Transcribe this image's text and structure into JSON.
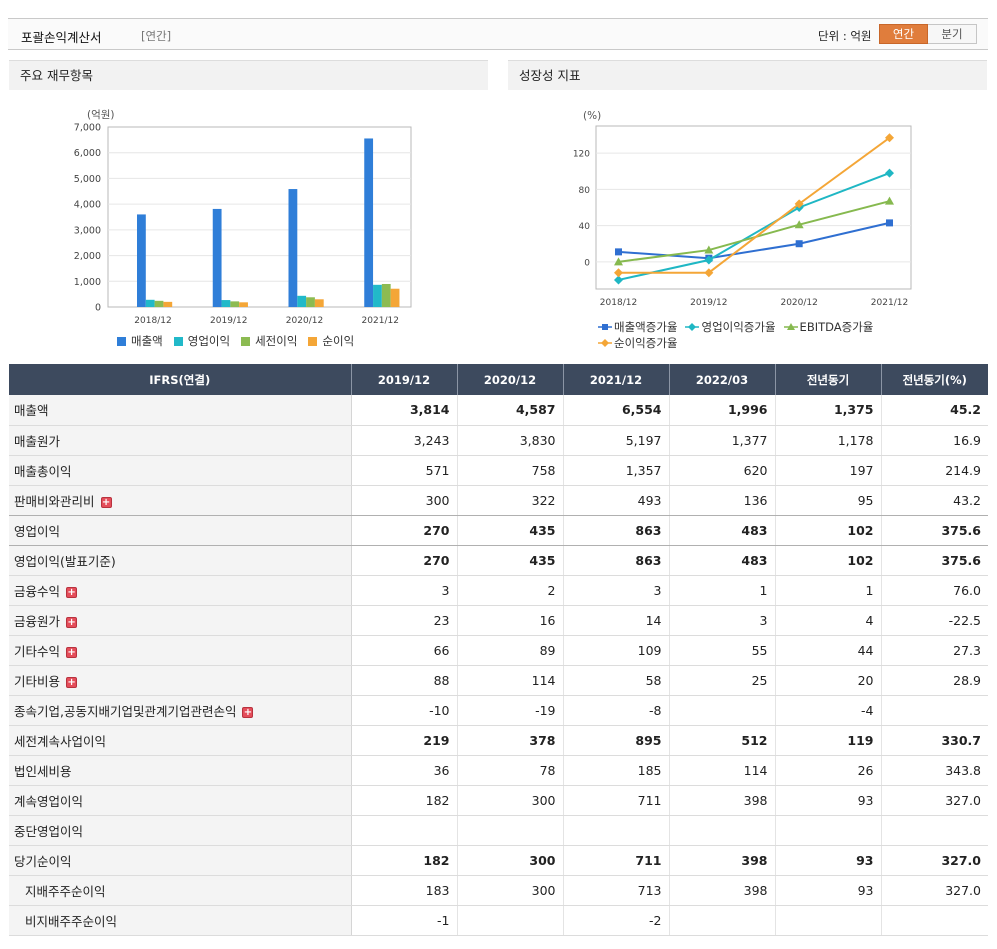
{
  "header": {
    "title": "포괄손익계산서",
    "subtitle": "[연간]",
    "unit_label": "단위 : 억원",
    "toggle_annual": "연간",
    "toggle_quarter": "분기",
    "active_toggle": "연간",
    "accent_color": "#e07d3c"
  },
  "left_panel": {
    "title": "주요 재무항목"
  },
  "right_panel": {
    "title": "성장성 지표"
  },
  "chart_data": [
    {
      "type": "bar",
      "title": "주요 재무항목",
      "ylabel": "(억원)",
      "ylim": [
        0,
        7000
      ],
      "yticks": [
        "7,000",
        "6,000",
        "5,000",
        "4,000",
        "3,000",
        "2,000",
        "1,000",
        "0"
      ],
      "categories": [
        "2018/12",
        "2019/12",
        "2020/12",
        "2021/12"
      ],
      "series": [
        {
          "name": "매출액",
          "color": "#2f7ed8",
          "values": [
            3600,
            3814,
            4587,
            6554
          ]
        },
        {
          "name": "영업이익",
          "color": "#21b9c9",
          "values": [
            280,
            270,
            435,
            863
          ]
        },
        {
          "name": "세전이익",
          "color": "#8cbb52",
          "values": [
            240,
            219,
            378,
            895
          ]
        },
        {
          "name": "순이익",
          "color": "#f4a637",
          "values": [
            200,
            182,
            300,
            711
          ]
        }
      ],
      "legend_position": "bottom",
      "grid": true
    },
    {
      "type": "line",
      "title": "성장성 지표",
      "ylabel": "(%)",
      "ylim": [
        -30,
        150
      ],
      "yticks": [
        "120",
        "80",
        "40",
        "0"
      ],
      "categories": [
        "2018/12",
        "2019/12",
        "2020/12",
        "2021/12"
      ],
      "series": [
        {
          "name": "매출액증가율",
          "color": "#2f6fd1",
          "marker": "square",
          "values": [
            11,
            4,
            20,
            43
          ]
        },
        {
          "name": "영업이익증가율",
          "color": "#1fb7c4",
          "marker": "diamond",
          "values": [
            -20,
            2,
            60,
            98
          ]
        },
        {
          "name": "EBITDA증가율",
          "color": "#86b94f",
          "marker": "triangle",
          "values": [
            0,
            13,
            41,
            67
          ]
        },
        {
          "name": "순이익증가율",
          "color": "#f4a637",
          "marker": "diamond",
          "values": [
            -12,
            -12,
            64,
            137
          ]
        }
      ],
      "legend_position": "bottom",
      "grid": true
    }
  ],
  "table": {
    "headers": [
      "IFRS(연결)",
      "2019/12",
      "2020/12",
      "2021/12",
      "2022/03",
      "전년동기",
      "전년동기(%)"
    ],
    "rows": [
      {
        "label": "매출액",
        "bold": true,
        "values": [
          "3,814",
          "4,587",
          "6,554",
          "1,996",
          "1,375",
          "45.2"
        ]
      },
      {
        "label": "매출원가",
        "values": [
          "3,243",
          "3,830",
          "5,197",
          "1,377",
          "1,178",
          "16.9"
        ]
      },
      {
        "label": "매출총이익",
        "values": [
          "571",
          "758",
          "1,357",
          "620",
          "197",
          "214.9"
        ]
      },
      {
        "label": "판매비와관리비",
        "expand": true,
        "values": [
          "300",
          "322",
          "493",
          "136",
          "95",
          "43.2"
        ]
      },
      {
        "label": "영업이익",
        "bold": true,
        "values": [
          "270",
          "435",
          "863",
          "483",
          "102",
          "375.6"
        ]
      },
      {
        "label": "영업이익(발표기준)",
        "bold": true,
        "values": [
          "270",
          "435",
          "863",
          "483",
          "102",
          "375.6"
        ]
      },
      {
        "label": "금융수익",
        "expand": true,
        "values": [
          "3",
          "2",
          "3",
          "1",
          "1",
          "76.0"
        ]
      },
      {
        "label": "금융원가",
        "expand": true,
        "values": [
          "23",
          "16",
          "14",
          "3",
          "4",
          "-22.5"
        ]
      },
      {
        "label": "기타수익",
        "expand": true,
        "values": [
          "66",
          "89",
          "109",
          "55",
          "44",
          "27.3"
        ]
      },
      {
        "label": "기타비용",
        "expand": true,
        "values": [
          "88",
          "114",
          "58",
          "25",
          "20",
          "28.9"
        ]
      },
      {
        "label": "종속기업,공동지배기업및관계기업관련손익",
        "expand": true,
        "values": [
          "-10",
          "-19",
          "-8",
          "",
          "-4",
          ""
        ]
      },
      {
        "label": "세전계속사업이익",
        "bold": true,
        "values": [
          "219",
          "378",
          "895",
          "512",
          "119",
          "330.7"
        ]
      },
      {
        "label": "법인세비용",
        "values": [
          "36",
          "78",
          "185",
          "114",
          "26",
          "343.8"
        ]
      },
      {
        "label": "계속영업이익",
        "values": [
          "182",
          "300",
          "711",
          "398",
          "93",
          "327.0"
        ]
      },
      {
        "label": "중단영업이익",
        "values": [
          "",
          "",
          "",
          "",
          "",
          ""
        ]
      },
      {
        "label": "당기순이익",
        "bold": true,
        "values": [
          "182",
          "300",
          "711",
          "398",
          "93",
          "327.0"
        ]
      },
      {
        "label": "지배주주순이익",
        "sub": true,
        "values": [
          "183",
          "300",
          "713",
          "398",
          "93",
          "327.0"
        ]
      },
      {
        "label": "비지배주주순이익",
        "sub": true,
        "values": [
          "-1",
          "",
          "-2",
          "",
          "",
          ""
        ]
      }
    ]
  }
}
